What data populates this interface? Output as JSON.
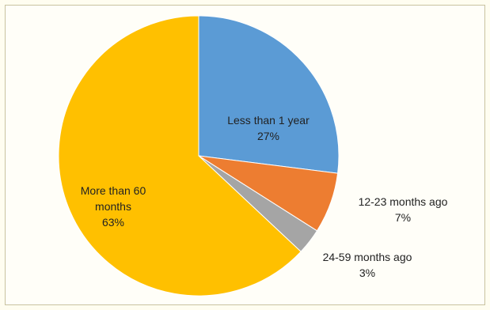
{
  "chart_data": {
    "type": "pie",
    "title": "",
    "slices": [
      {
        "label": "Less than 1 year",
        "value": 27,
        "value_label": "27%",
        "color": "#5b9bd5"
      },
      {
        "label": "12-23 months ago",
        "value": 7,
        "value_label": "7%",
        "color": "#ed7d31"
      },
      {
        "label": "24-59 months ago",
        "value": 3,
        "value_label": "3%",
        "color": "#a5a5a5"
      },
      {
        "label_lines": [
          "More than 60",
          "months"
        ],
        "value": 63,
        "value_label": "63%",
        "color": "#ffc000"
      }
    ],
    "start_angle_deg": 0,
    "direction": "clockwise",
    "legend": "none"
  }
}
